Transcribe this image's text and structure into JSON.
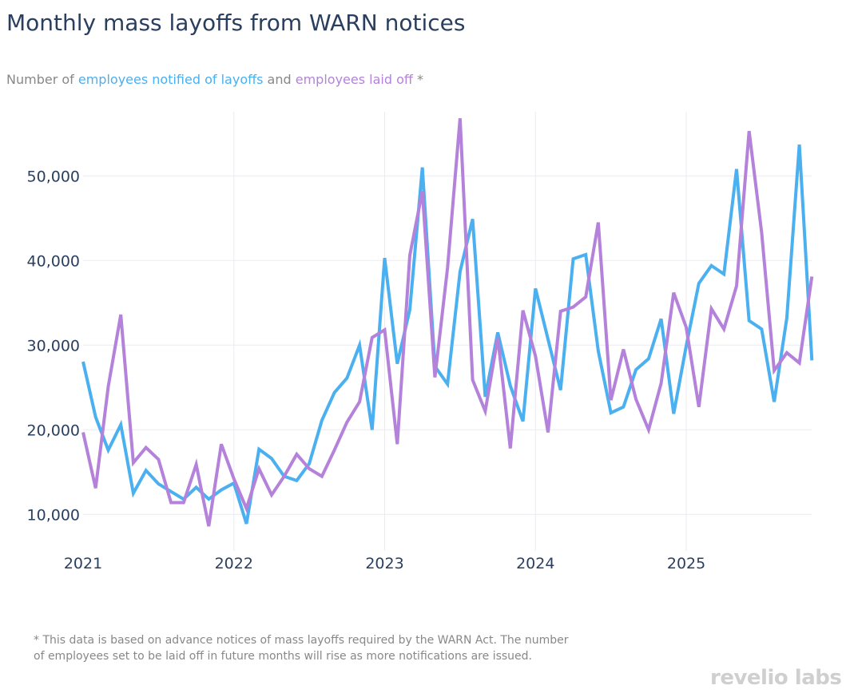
{
  "header": {
    "title": "Monthly mass layoffs from WARN notices",
    "subtitle_prefix": "Number of ",
    "subtitle_series1": "employees notified of layoffs",
    "subtitle_mid": " and ",
    "subtitle_series2": "employees laid off",
    "subtitle_suffix": " *"
  },
  "footnote": {
    "line1": "* This data is based on advance notices of mass layoffs required by the WARN Act. The number",
    "line2": "of employees set to be laid off in future months will rise as more notifications are issued."
  },
  "logo": {
    "text_left": "revel",
    "text_mid": "io",
    "text_right": " labs"
  },
  "chart_data": {
    "type": "line",
    "title": "Monthly mass layoffs from WARN notices",
    "subtitle": "Number of employees notified of layoffs and employees laid off *",
    "xlabel": "",
    "ylabel": "",
    "x_start": "2021-01",
    "x_end": "2025-11",
    "x_ticks": [
      "2021",
      "2022",
      "2023",
      "2024",
      "2025"
    ],
    "y_ticks": [
      10000,
      20000,
      30000,
      40000,
      50000
    ],
    "y_tick_labels": [
      "10,000",
      "20,000",
      "30,000",
      "40,000",
      "50,000"
    ],
    "ylim": [
      6000,
      60000
    ],
    "grid": true,
    "legend": "none (series named in subtitle)",
    "series": [
      {
        "name": "employees notified of layoffs",
        "color": "#4ab0ef",
        "values": [
          28050,
          21500,
          17600,
          20600,
          12500,
          15200,
          13600,
          12700,
          11800,
          13200,
          11800,
          12900,
          13700,
          8900,
          17700,
          16600,
          14500,
          14000,
          16000,
          21100,
          24400,
          26100,
          30000,
          20000,
          40300,
          27800,
          34200,
          51000,
          27500,
          25400,
          38700,
          44900,
          23900,
          31500,
          25200,
          21000,
          36700,
          30700,
          24700,
          40200,
          40700,
          29300,
          22000,
          22700,
          27100,
          28400,
          33100,
          21900,
          29900,
          37300,
          39400,
          38400,
          50800,
          32900,
          31900,
          23300,
          33200,
          53700,
          28200
        ]
      },
      {
        "name": "employees laid off",
        "color": "#b482da",
        "values": [
          19700,
          13100,
          25100,
          33600,
          16100,
          17900,
          16500,
          11400,
          11400,
          15900,
          8600,
          18300,
          14200,
          10700,
          15400,
          12300,
          14500,
          17100,
          15400,
          14500,
          17600,
          20900,
          23300,
          30900,
          31800,
          18300,
          40600,
          48200,
          26200,
          39100,
          56800,
          25900,
          22200,
          30900,
          17800,
          34100,
          28700,
          19700,
          34000,
          34500,
          35700,
          44500,
          23500,
          29500,
          23600,
          20000,
          25500,
          36200,
          32100,
          22700,
          34300,
          31900,
          37000,
          55300,
          43300,
          27000,
          29100,
          27900,
          38100
        ]
      }
    ]
  }
}
